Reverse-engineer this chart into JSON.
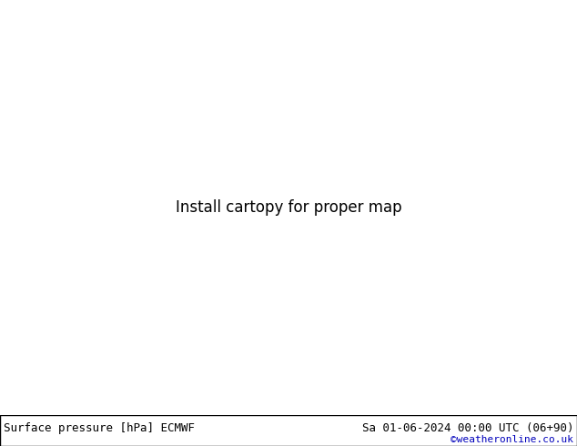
{
  "title_left": "Surface pressure [hPa] ECMWF",
  "title_right": "Sa 01-06-2024 00:00 UTC (06+90)",
  "credit": "©weatheronline.co.uk",
  "bg_color": "#ffffff",
  "figsize": [
    6.34,
    4.9
  ],
  "dpi": 100,
  "bottom_bar_color": "#cccccc",
  "land_color": "#9dc88d",
  "sea_color": "#d8e8f0",
  "contour_color_low": "#0000ff",
  "contour_color_mid": "#ff0000",
  "contour_color_black": "#000000",
  "map_extent": [
    -5,
    35,
    53,
    72
  ],
  "pressure_base": 1015,
  "label_fontsize": 7,
  "border_lw": 1.2
}
